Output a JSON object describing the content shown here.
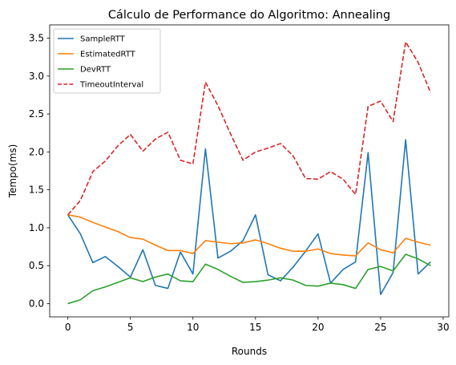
{
  "chart_data": {
    "type": "line",
    "title": "Cálculo de Performance do Algoritmo: Annealing",
    "xlabel": "Rounds",
    "ylabel": "Tempo(ms)",
    "xlim": [
      -1.45,
      30.45
    ],
    "ylim": [
      -0.175,
      3.675
    ],
    "xticks": [
      0,
      5,
      10,
      15,
      20,
      25,
      30
    ],
    "yticks": [
      0.0,
      0.5,
      1.0,
      1.5,
      2.0,
      2.5,
      3.0,
      3.5
    ],
    "xtick_labels": [
      "0",
      "5",
      "10",
      "15",
      "20",
      "25",
      "30"
    ],
    "ytick_labels": [
      "0.0",
      "0.5",
      "1.0",
      "1.5",
      "2.0",
      "2.5",
      "3.0",
      "3.5"
    ],
    "grid": false,
    "legend_position": "top-left",
    "x": [
      0,
      1,
      2,
      3,
      4,
      5,
      6,
      7,
      8,
      9,
      10,
      11,
      12,
      13,
      14,
      15,
      16,
      17,
      18,
      19,
      20,
      21,
      22,
      23,
      24,
      25,
      26,
      27,
      28,
      29
    ],
    "series": [
      {
        "name": "SampleRTT",
        "color": "#1f77b4",
        "dashed": false,
        "values": [
          1.17,
          0.92,
          0.54,
          0.62,
          0.49,
          0.35,
          0.71,
          0.24,
          0.2,
          0.68,
          0.39,
          2.04,
          0.6,
          0.69,
          0.83,
          1.17,
          0.38,
          0.3,
          0.48,
          0.69,
          0.92,
          0.27,
          0.45,
          0.55,
          1.99,
          0.12,
          0.41,
          2.16,
          0.39,
          0.55
        ]
      },
      {
        "name": "EstimatedRTT",
        "color": "#ff7f0e",
        "dashed": false,
        "values": [
          1.17,
          1.14,
          1.07,
          1.01,
          0.95,
          0.87,
          0.85,
          0.77,
          0.7,
          0.7,
          0.66,
          0.83,
          0.81,
          0.79,
          0.8,
          0.84,
          0.79,
          0.73,
          0.69,
          0.69,
          0.72,
          0.66,
          0.64,
          0.63,
          0.8,
          0.71,
          0.67,
          0.86,
          0.81,
          0.77
        ]
      },
      {
        "name": "DevRTT",
        "color": "#2ca02c",
        "dashed": false,
        "values": [
          0.0,
          0.05,
          0.17,
          0.22,
          0.28,
          0.34,
          0.29,
          0.35,
          0.39,
          0.3,
          0.29,
          0.52,
          0.45,
          0.36,
          0.28,
          0.29,
          0.31,
          0.34,
          0.31,
          0.24,
          0.23,
          0.27,
          0.25,
          0.2,
          0.45,
          0.49,
          0.43,
          0.65,
          0.59,
          0.5
        ]
      },
      {
        "name": "TimeoutInterval",
        "color": "#d62728",
        "dashed": true,
        "values": [
          1.17,
          1.36,
          1.74,
          1.88,
          2.08,
          2.23,
          2.01,
          2.17,
          2.26,
          1.89,
          1.84,
          2.92,
          2.61,
          2.24,
          1.89,
          2.0,
          2.05,
          2.11,
          1.95,
          1.65,
          1.64,
          1.74,
          1.64,
          1.44,
          2.6,
          2.67,
          2.4,
          3.45,
          3.18,
          2.78
        ]
      }
    ]
  }
}
